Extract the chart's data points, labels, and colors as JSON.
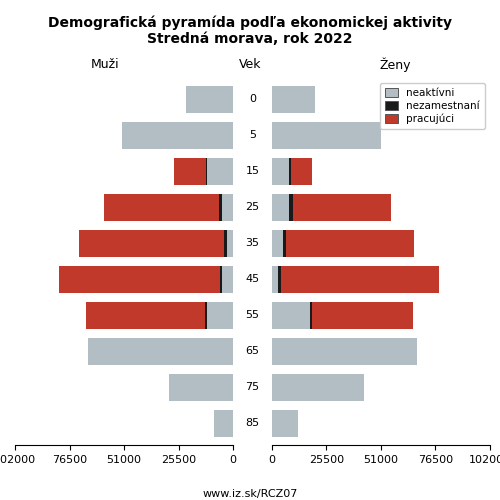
{
  "title_line1": "Demografická pyramída podľa ekonomickej aktivity",
  "title_line2": "Stredná morava, rok 2022",
  "age_labels": [
    "85",
    "75",
    "65",
    "55",
    "45",
    "35",
    "25",
    "15",
    "5",
    "0"
  ],
  "label_muzi": "Muži",
  "label_zeny": "Ženy",
  "label_vek": "Vek",
  "url": "www.iz.sk/RCZ07",
  "legend_labels": [
    "neaktívni",
    "nezamestnaní",
    "pracujúci"
  ],
  "colors": {
    "neaktivni": "#b2bec3",
    "nezamestnani": "#1a1a1a",
    "pracujuci": "#c0392b"
  },
  "males": {
    "neaktivni": [
      9000,
      30000,
      68000,
      12000,
      5000,
      3000,
      5000,
      12000,
      52000,
      22000
    ],
    "nezamestnani": [
      0,
      0,
      0,
      1000,
      1200,
      1200,
      1500,
      800,
      0,
      0
    ],
    "pracujuci": [
      0,
      0,
      0,
      56000,
      75000,
      68000,
      54000,
      15000,
      0,
      0
    ]
  },
  "females": {
    "neaktivni": [
      12000,
      43000,
      68000,
      18000,
      3000,
      5000,
      8000,
      8000,
      51000,
      20000
    ],
    "nezamestnani": [
      0,
      0,
      0,
      800,
      1200,
      1500,
      1800,
      800,
      0,
      0
    ],
    "pracujuci": [
      0,
      0,
      0,
      47000,
      74000,
      60000,
      46000,
      10000,
      0,
      0
    ]
  },
  "xlim": 102000,
  "xticks": [
    0,
    25500,
    51000,
    76500,
    102000
  ],
  "background_color": "#ffffff",
  "bar_height": 0.75,
  "fontsize_title": 10,
  "fontsize_labels": 9,
  "fontsize_ticks": 8
}
